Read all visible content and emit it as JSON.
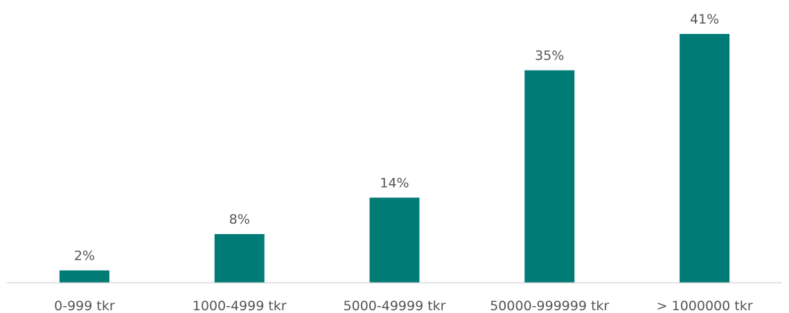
{
  "chart_data": {
    "type": "bar",
    "categories": [
      "0-999 tkr",
      "1000-4999 tkr",
      "5000-49999 tkr",
      "50000-999999 tkr",
      "> 1000000 tkr"
    ],
    "values": [
      2,
      8,
      14,
      35,
      41
    ],
    "value_labels": [
      "2%",
      "8%",
      "14%",
      "35%",
      "41%"
    ],
    "unit": "%",
    "ylim": [
      0,
      41
    ],
    "grid": false,
    "legend": "none",
    "colors": {
      "bar": "#007B76",
      "axis": "#D9D9D9",
      "text": "#555555"
    }
  }
}
